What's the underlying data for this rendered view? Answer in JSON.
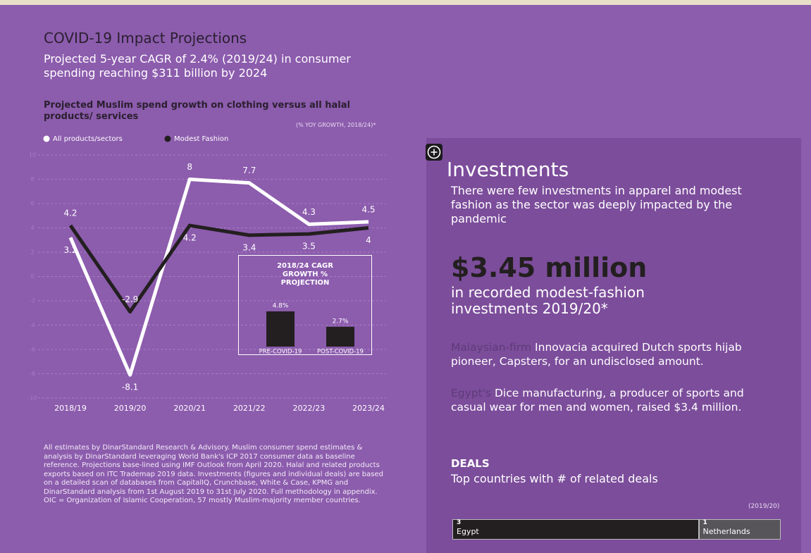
{
  "header": {
    "title": "COVID-19 Impact Projections",
    "subtitle": "Projected 5-year CAGR of 2.4% (2019/24) in consumer spending reaching $311 billion by 2024"
  },
  "chart_data": [
    {
      "type": "line",
      "title": "Projected Muslim spend growth on clothing versus all halal products/ services",
      "subtitle": "(% YOY GROWTH, 2018/24)*",
      "categories": [
        "2018/19",
        "2019/20",
        "2020/21",
        "2021/22",
        "2022/23",
        "2023/24"
      ],
      "series": [
        {
          "name": "All products/sectors",
          "color": "#ffffff",
          "values": [
            3.2,
            -8.1,
            8,
            7.7,
            4.3,
            4.5
          ]
        },
        {
          "name": "Modest Fashion",
          "color": "#231f20",
          "values": [
            4.2,
            -2.9,
            4.2,
            3.4,
            3.5,
            4
          ]
        }
      ],
      "ylim": [
        -10,
        10
      ],
      "yticks": [
        -10,
        -8,
        -6,
        -4,
        -2,
        0,
        2,
        4,
        6,
        8,
        10
      ],
      "grid": true
    },
    {
      "type": "bar",
      "title": "2018/24 CAGR GROWTH % PROJECTION",
      "categories": [
        "PRE-COVID-19",
        "POST-COVID-19"
      ],
      "values": [
        4.8,
        2.7
      ],
      "value_labels": [
        "4.8%",
        "2.7%"
      ],
      "color": "#231f20"
    }
  ],
  "footnote": "All estimates by DinarStandard Research & Advisory. Muslim consumer spend estimates & analysis by DinarStandard leveraging World Bank's ICP 2017 consumer data as baseline reference.  Projections base-lined using IMF Outlook from April 2020. Halal and related products exports based on ITC Trademap 2019 data. Investments (figures and individual deals) are based on a detailed scan of databases from CapitalIQ, Crunchbase, White & Case, KPMG and DinarStandard analysis from 1st August 2019 to 31st July 2020. Full methodology in appendix. OIC = Organization of Islamic Cooperation, 57 mostly Muslim-majority member countries.",
  "investments": {
    "title": "Investments",
    "intro": "There were few investments in apparel and modest fashion as the sector was deeply impacted by the pandemic",
    "amount": "$3.45 million",
    "amount_caption": "in recorded modest-fashion investments 2019/20*",
    "items": [
      {
        "highlight": "Malaysian-firm",
        "text": "Innovacia acquired Dutch sports hijab pioneer, Capsters, for an undisclosed amount."
      },
      {
        "highlight": "Egypt's",
        "text": "Dice manufacturing, a producer of sports and casual wear for men and women, raised $3.4 million."
      }
    ]
  },
  "deals": {
    "title": "DEALS",
    "subtitle": "Top countries with # of related deals",
    "period": "(2019/20)",
    "items": [
      {
        "count": 3,
        "country": "Egypt",
        "color": "#231f20"
      },
      {
        "count": 1,
        "country": "Netherlands",
        "color": "#58555a"
      }
    ]
  }
}
